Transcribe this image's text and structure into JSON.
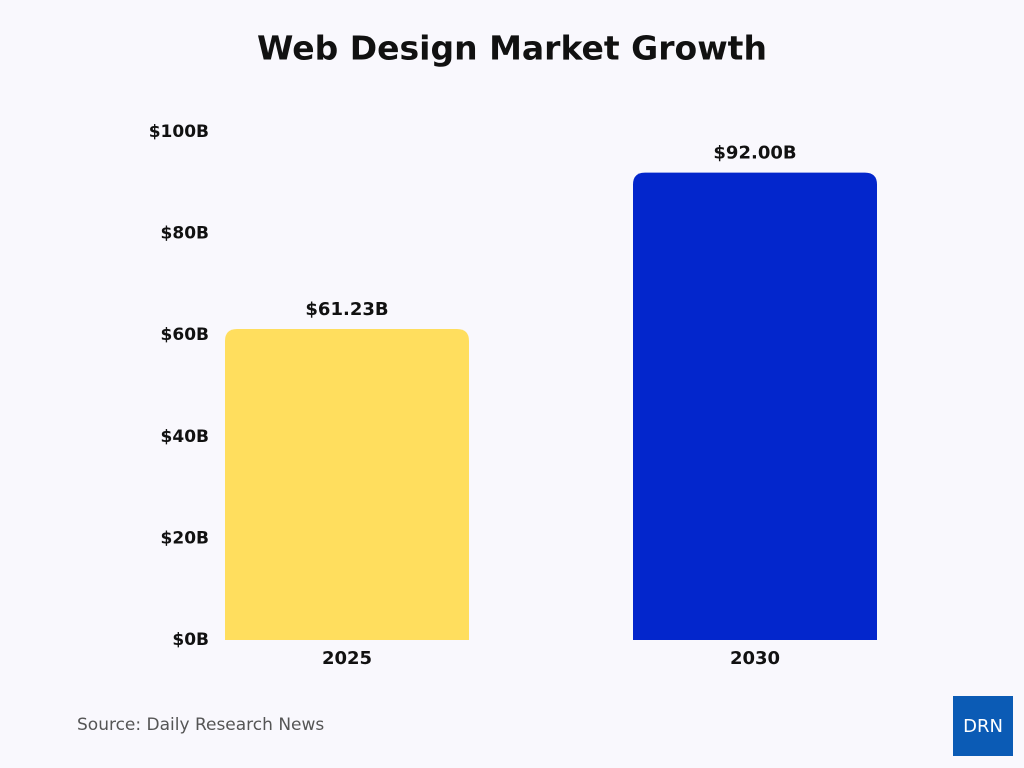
{
  "chart_data": {
    "type": "bar",
    "title": "Web Design Market Growth",
    "categories": [
      "2025",
      "2030"
    ],
    "values": [
      61.23,
      92
    ],
    "value_labels": [
      "$61.23B",
      "$92.00B"
    ],
    "colors": [
      "#ffde5e",
      "#0326cc"
    ],
    "ylim": [
      0,
      100
    ],
    "yticks": [
      {
        "value": 0,
        "label": "$0B"
      },
      {
        "value": 20,
        "label": "$20B"
      },
      {
        "value": 40,
        "label": "$40B"
      },
      {
        "value": 60,
        "label": "$60B"
      },
      {
        "value": 80,
        "label": "$80B"
      },
      {
        "value": 100,
        "label": "$100B"
      }
    ],
    "source": "Source: Daily Research News",
    "logo": "DRN"
  }
}
